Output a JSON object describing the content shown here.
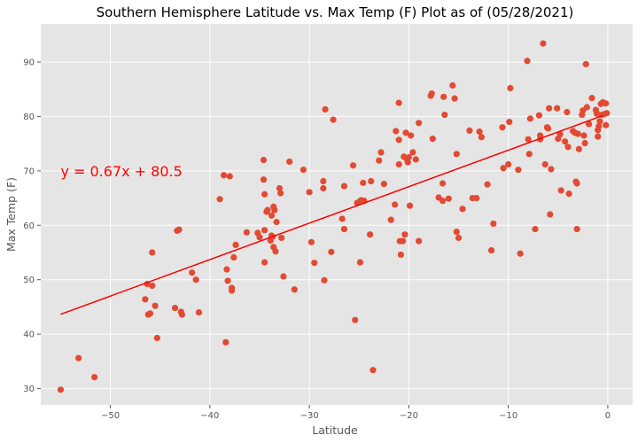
{
  "chart_data": {
    "type": "scatter",
    "title": "Southern Hemisphere Latitude vs. Max Temp (F) Plot as of (05/28/2021)",
    "xlabel": "Latitude",
    "ylabel": "Max Temp (F)",
    "xlim": [
      -57,
      2.5
    ],
    "ylim": [
      27,
      97
    ],
    "xticks": [
      -50,
      -40,
      -30,
      -20,
      -10,
      0
    ],
    "yticks": [
      30,
      40,
      50,
      60,
      70,
      80,
      90
    ],
    "grid": true,
    "background": "#e5e5e5",
    "point_color": "#e24a33",
    "regression": {
      "slope": 0.67,
      "intercept": 80.5,
      "x_range": [
        -55,
        -0.5
      ],
      "color": "#ff0000",
      "annotation": "y = 0.67x + 80.5",
      "annotation_x": -55,
      "annotation_y": 70
    },
    "points": [
      [
        -55,
        29.8
      ],
      [
        -53.2,
        35.6
      ],
      [
        -51.6,
        32.1
      ],
      [
        -46.5,
        46.4
      ],
      [
        -46.3,
        49.2
      ],
      [
        -46.2,
        43.6
      ],
      [
        -46,
        43.8
      ],
      [
        -45.8,
        48.9
      ],
      [
        -45.8,
        55
      ],
      [
        -45.5,
        45.2
      ],
      [
        -45.3,
        39.3
      ],
      [
        -43.5,
        44.8
      ],
      [
        -43.3,
        59
      ],
      [
        -43.1,
        59.2
      ],
      [
        -42.9,
        44.1
      ],
      [
        -42.8,
        43.6
      ],
      [
        -41.8,
        51.3
      ],
      [
        -41.4,
        50
      ],
      [
        -41.1,
        44
      ],
      [
        -39,
        64.8
      ],
      [
        -38.6,
        69.2
      ],
      [
        -38.4,
        38.5
      ],
      [
        -38.3,
        51.9
      ],
      [
        -38.2,
        49.8
      ],
      [
        -38,
        69
      ],
      [
        -37.8,
        48.5
      ],
      [
        -37.8,
        48
      ],
      [
        -37.6,
        54.1
      ],
      [
        -37.4,
        56.4
      ],
      [
        -36.3,
        58.7
      ],
      [
        -35.2,
        58.6
      ],
      [
        -35,
        57.8
      ],
      [
        -34.6,
        68.4
      ],
      [
        -34.6,
        72
      ],
      [
        -34.5,
        65.7
      ],
      [
        -34.5,
        59.1
      ],
      [
        -34.5,
        53.2
      ],
      [
        -34.3,
        62.5
      ],
      [
        -34.2,
        62.8
      ],
      [
        -33.9,
        57.2
      ],
      [
        -33.8,
        61.8
      ],
      [
        -33.8,
        58.1
      ],
      [
        -33.7,
        57.9
      ],
      [
        -33.6,
        63.4
      ],
      [
        -33.6,
        56
      ],
      [
        -33.5,
        62.8
      ],
      [
        -33.4,
        55.2
      ],
      [
        -33.3,
        60.6
      ],
      [
        -33,
        66.8
      ],
      [
        -32.9,
        65.9
      ],
      [
        -32.8,
        57.7
      ],
      [
        -32.6,
        50.6
      ],
      [
        -32,
        71.7
      ],
      [
        -31.5,
        48.2
      ],
      [
        -30.6,
        70.2
      ],
      [
        -30,
        66.1
      ],
      [
        -29.8,
        56.9
      ],
      [
        -29.5,
        53.1
      ],
      [
        -28.6,
        68.1
      ],
      [
        -28.6,
        66.8
      ],
      [
        -28.5,
        49.9
      ],
      [
        -28.4,
        81.3
      ],
      [
        -27.8,
        55.1
      ],
      [
        -27.6,
        79.4
      ],
      [
        -26.7,
        61.2
      ],
      [
        -26.5,
        67.2
      ],
      [
        -26.5,
        59.3
      ],
      [
        -25.6,
        71
      ],
      [
        -25.4,
        42.6
      ],
      [
        -25.2,
        64.1
      ],
      [
        -25,
        64.3
      ],
      [
        -24.9,
        53.2
      ],
      [
        -24.8,
        64.6
      ],
      [
        -24.6,
        67.8
      ],
      [
        -24.5,
        64.5
      ],
      [
        -23.9,
        58.3
      ],
      [
        -23.8,
        68.1
      ],
      [
        -23.6,
        33.4
      ],
      [
        -23,
        71.9
      ],
      [
        -22.8,
        73.4
      ],
      [
        -22.5,
        67.6
      ],
      [
        -21.8,
        61
      ],
      [
        -21.4,
        63.8
      ],
      [
        -21.3,
        77.3
      ],
      [
        -21,
        71.2
      ],
      [
        -21,
        75.7
      ],
      [
        -21,
        82.5
      ],
      [
        -20.9,
        57.1
      ],
      [
        -20.8,
        54.6
      ],
      [
        -20.6,
        57.1
      ],
      [
        -20.5,
        72.6
      ],
      [
        -20.4,
        58.3
      ],
      [
        -20.3,
        77
      ],
      [
        -20.2,
        72.2
      ],
      [
        -20.1,
        71.6
      ],
      [
        -20,
        72.5
      ],
      [
        -19.9,
        63.6
      ],
      [
        -19.8,
        76.5
      ],
      [
        -19.6,
        73.4
      ],
      [
        -19.3,
        72.1
      ],
      [
        -19,
        78.8
      ],
      [
        -19,
        57.1
      ],
      [
        -17.8,
        83.8
      ],
      [
        -17.7,
        84.2
      ],
      [
        -17.6,
        75.9
      ],
      [
        -17,
        65.1
      ],
      [
        -16.6,
        64.5
      ],
      [
        -16.6,
        67.7
      ],
      [
        -16.4,
        80.3
      ],
      [
        -16.5,
        83.6
      ],
      [
        -16,
        64.9
      ],
      [
        -15.6,
        85.7
      ],
      [
        -15.4,
        83.3
      ],
      [
        -15.2,
        73.1
      ],
      [
        -15.2,
        58.8
      ],
      [
        -15,
        57.7
      ],
      [
        -14.6,
        63
      ],
      [
        -13.9,
        77.4
      ],
      [
        -13.6,
        65
      ],
      [
        -13.2,
        65
      ],
      [
        -12.9,
        77.2
      ],
      [
        -12.7,
        76.2
      ],
      [
        -12.1,
        67.5
      ],
      [
        -11.7,
        55.4
      ],
      [
        -11.5,
        60.3
      ],
      [
        -10.6,
        78
      ],
      [
        -10.5,
        70.5
      ],
      [
        -10,
        71.2
      ],
      [
        -9.9,
        79
      ],
      [
        -9.8,
        85.2
      ],
      [
        -9,
        70.2
      ],
      [
        -8.8,
        54.8
      ],
      [
        -8.1,
        90.2
      ],
      [
        -8,
        75.8
      ],
      [
        -7.9,
        73.1
      ],
      [
        -7.8,
        79.6
      ],
      [
        -7.3,
        59.3
      ],
      [
        -6.9,
        80.2
      ],
      [
        -6.8,
        75.8
      ],
      [
        -6.8,
        76.5
      ],
      [
        -6.5,
        93.4
      ],
      [
        -6.3,
        71.2
      ],
      [
        -6.1,
        78
      ],
      [
        -6,
        77.8
      ],
      [
        -5.9,
        81.5
      ],
      [
        -5.8,
        62
      ],
      [
        -5.7,
        70.3
      ],
      [
        -5.1,
        81.5
      ],
      [
        -5,
        75.9
      ],
      [
        -4.8,
        76.7
      ],
      [
        -4.7,
        66.4
      ],
      [
        -4.3,
        75.4
      ],
      [
        -4.1,
        80.8
      ],
      [
        -4,
        74.4
      ],
      [
        -3.9,
        65.8
      ],
      [
        -3.5,
        77.3
      ],
      [
        -3.3,
        77
      ],
      [
        -3.2,
        68
      ],
      [
        -3.1,
        67.7
      ],
      [
        -3.1,
        59.3
      ],
      [
        -3,
        76.8
      ],
      [
        -2.9,
        74
      ],
      [
        -2.6,
        80.3
      ],
      [
        -2.5,
        81.1
      ],
      [
        -2.4,
        76.5
      ],
      [
        -2.3,
        75.1
      ],
      [
        -2.2,
        89.6
      ],
      [
        -2.1,
        81.7
      ],
      [
        -1.9,
        78.6
      ],
      [
        -1.6,
        83.4
      ],
      [
        -1.2,
        81.2
      ],
      [
        -1.1,
        80.5
      ],
      [
        -1,
        76.3
      ],
      [
        -1,
        77.5
      ],
      [
        -0.9,
        78.2
      ],
      [
        -0.8,
        79.1
      ],
      [
        -0.7,
        82.3
      ],
      [
        -0.6,
        80.3
      ],
      [
        -0.5,
        82.6
      ],
      [
        -0.4,
        80.4
      ],
      [
        -0.2,
        78.4
      ],
      [
        -0.2,
        82.4
      ],
      [
        -0.1,
        80.6
      ]
    ]
  }
}
